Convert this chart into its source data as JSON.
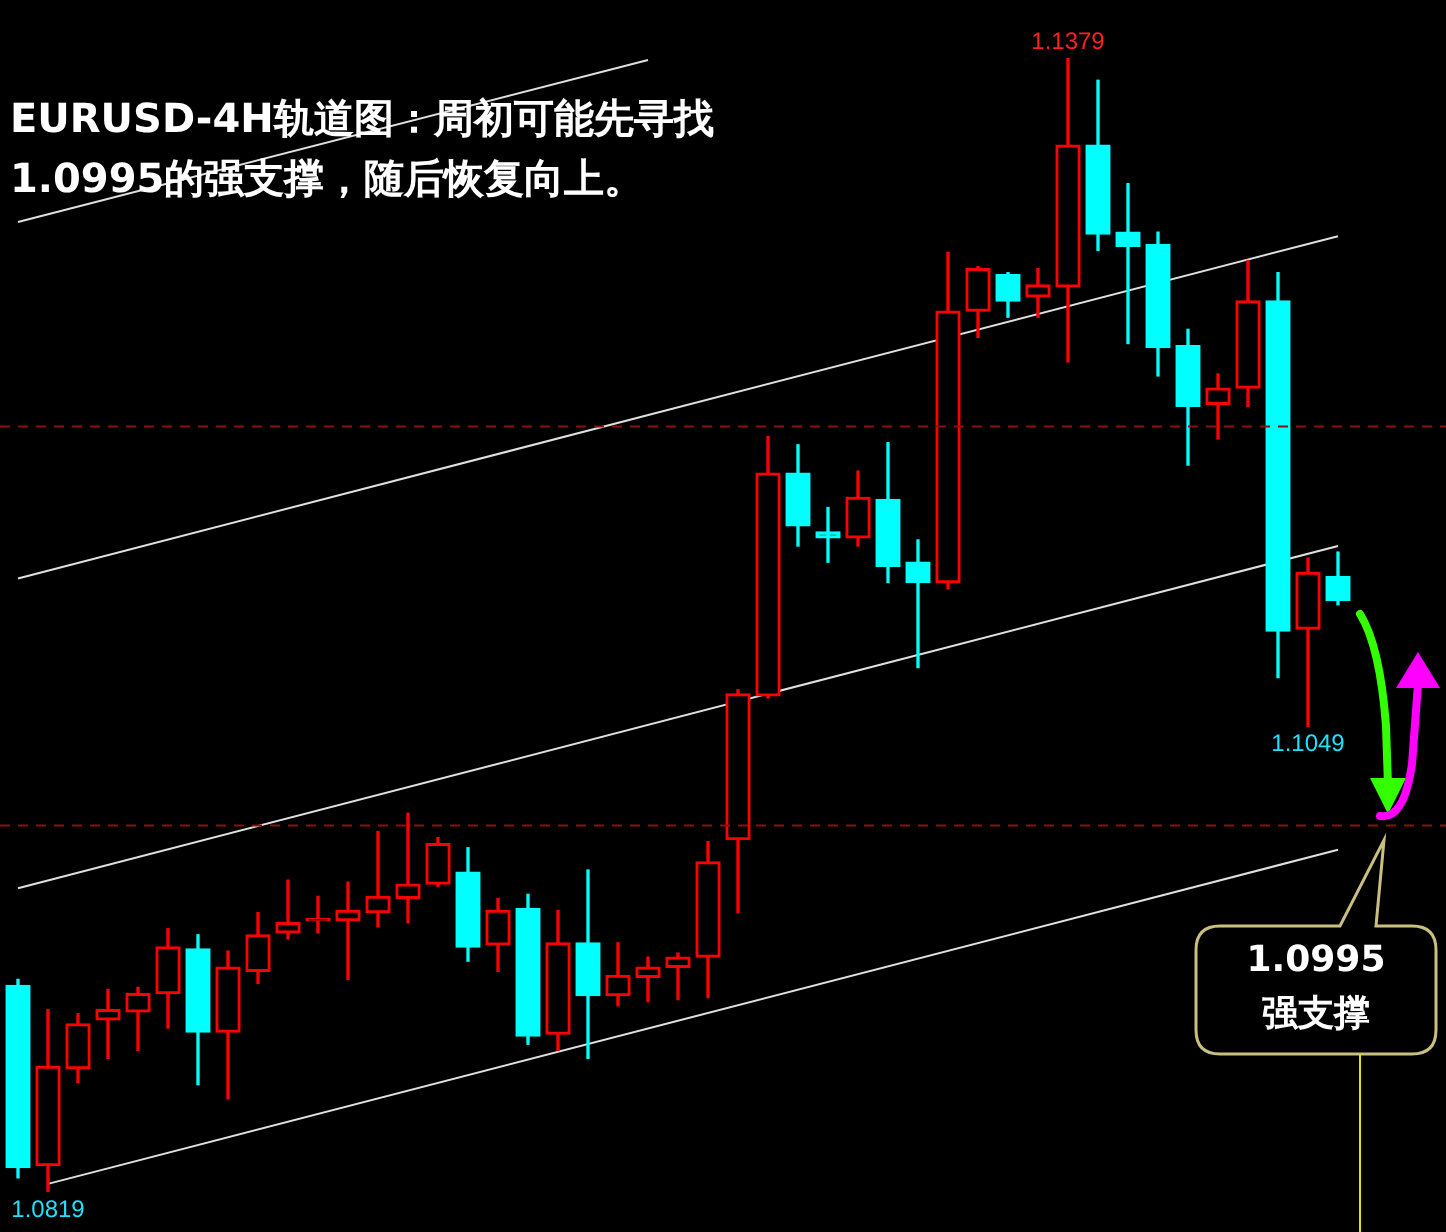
{
  "chart_data": {
    "type": "candlestick",
    "title": "EURUSD-4H轨道图：周初可能先寻找1.0995的强支撑，随后恢复向上。",
    "categories": [
      null,
      null,
      null,
      null,
      null,
      null,
      null,
      null,
      null,
      null,
      null,
      null,
      null,
      null,
      null,
      null,
      null,
      null,
      null,
      null,
      null,
      null,
      null,
      null,
      null,
      null,
      null,
      null,
      null,
      null,
      null,
      null,
      null,
      null,
      null,
      null,
      null,
      null,
      null,
      null,
      null,
      null,
      null,
      null,
      null
    ],
    "ohlc": [
      [
        1.0921,
        1.0924,
        1.0826,
        1.0831
      ],
      [
        1.0832,
        1.0909,
        1.0819,
        1.0881
      ],
      [
        1.088,
        1.0907,
        1.0873,
        1.0902
      ],
      [
        1.0904,
        1.0919,
        1.0885,
        1.0909
      ],
      [
        1.0908,
        1.092,
        1.0889,
        1.0917
      ],
      [
        1.0917,
        1.0949,
        1.09,
        1.094
      ],
      [
        1.0939,
        1.0946,
        1.0872,
        1.0898
      ],
      [
        1.0898,
        1.0938,
        1.0865,
        1.093
      ],
      [
        1.0928,
        1.0957,
        1.0922,
        1.0946
      ],
      [
        1.0947,
        1.0973,
        1.0944,
        1.0952
      ],
      [
        1.0953,
        1.0965,
        1.0947,
        1.0953
      ],
      [
        1.0953,
        1.0972,
        1.0924,
        1.0958
      ],
      [
        1.0957,
        1.0997,
        1.095,
        1.0965
      ],
      [
        1.0964,
        1.1006,
        1.0952,
        1.0971
      ],
      [
        1.0971,
        1.0994,
        1.097,
        1.0991
      ],
      [
        1.0977,
        1.0989,
        1.0933,
        1.094
      ],
      [
        1.0941,
        1.0964,
        1.0928,
        1.0958
      ],
      [
        1.0959,
        1.0966,
        1.0892,
        1.0896
      ],
      [
        1.0897,
        1.0958,
        1.0889,
        1.0942
      ],
      [
        1.0942,
        1.0978,
        1.0885,
        1.0916
      ],
      [
        1.0916,
        1.0942,
        1.0911,
        1.0926
      ],
      [
        1.0925,
        1.0935,
        1.0913,
        1.093
      ],
      [
        1.093,
        1.0937,
        1.0914,
        1.0935
      ],
      [
        1.0935,
        1.0992,
        1.0915,
        1.0982
      ],
      [
        1.0993,
        1.1067,
        1.0957,
        1.1065
      ],
      [
        1.1064,
        1.1192,
        1.1063,
        1.1174
      ],
      [
        1.1174,
        1.1188,
        1.1138,
        1.1148
      ],
      [
        1.1145,
        1.1157,
        1.113,
        1.1142
      ],
      [
        1.1142,
        1.1175,
        1.1138,
        1.1162
      ],
      [
        1.1161,
        1.1189,
        1.112,
        1.1128
      ],
      [
        1.113,
        1.1141,
        1.1078,
        1.112
      ],
      [
        1.112,
        1.1283,
        1.1117,
        1.1254
      ],
      [
        1.1254,
        1.1276,
        1.1241,
        1.1275
      ],
      [
        1.1272,
        1.1273,
        1.1251,
        1.1259
      ],
      [
        1.1261,
        1.1275,
        1.1251,
        1.1267
      ],
      [
        1.1266,
        1.1379,
        1.1229,
        1.1336
      ],
      [
        1.1336,
        1.1368,
        1.1284,
        1.1292
      ],
      [
        1.1293,
        1.1317,
        1.1238,
        1.1286
      ],
      [
        1.1287,
        1.1293,
        1.1222,
        1.1236
      ],
      [
        1.1237,
        1.1245,
        1.1178,
        1.1207
      ],
      [
        1.1208,
        1.1223,
        1.1191,
        1.1216
      ],
      [
        1.1216,
        1.1279,
        1.1207,
        1.1259
      ],
      [
        1.1259,
        1.1273,
        1.1073,
        1.1096
      ],
      [
        1.1097,
        1.1132,
        1.1049,
        1.1125
      ],
      [
        1.1123,
        1.1135,
        1.1109,
        1.1111
      ]
    ],
    "colors": [
      "#00ffff",
      "#ff0000",
      "#ff0000",
      "#ff0000",
      "#ff0000",
      "#ff0000",
      "#00ffff",
      "#ff0000",
      "#ff0000",
      "#ff0000",
      "#ff0000",
      "#ff0000",
      "#ff0000",
      "#ff0000",
      "#ff0000",
      "#00ffff",
      "#ff0000",
      "#00ffff",
      "#ff0000",
      "#00ffff",
      "#ff0000",
      "#ff0000",
      "#ff0000",
      "#ff0000",
      "#ff0000",
      "#ff0000",
      "#00ffff",
      "#00ffff",
      "#ff0000",
      "#00ffff",
      "#00ffff",
      "#ff0000",
      "#ff0000",
      "#00ffff",
      "#ff0000",
      "#ff0000",
      "#00ffff",
      "#00ffff",
      "#00ffff",
      "#00ffff",
      "#ff0000",
      "#ff0000",
      "#00ffff",
      "#ff0000",
      "#00ffff"
    ],
    "series": [
      {
        "type": "line",
        "color": "#e0e0e0",
        "values": [
          1.1298,
          null,
          null,
          null,
          null,
          null,
          null,
          null,
          null,
          null,
          null,
          null,
          null,
          null,
          null,
          null,
          null,
          null,
          null,
          null,
          null,
          1.1378,
          null,
          null,
          null,
          null,
          null,
          null,
          null,
          null,
          null,
          null,
          null,
          null,
          null,
          null,
          null,
          null,
          null,
          null,
          null,
          null,
          null,
          null,
          null
        ]
      },
      {
        "type": "line",
        "color": "#e0e0e0",
        "values": [
          1.1122,
          null,
          null,
          null,
          null,
          null,
          null,
          null,
          null,
          null,
          null,
          null,
          null,
          null,
          null,
          null,
          null,
          null,
          null,
          null,
          null,
          null,
          null,
          null,
          null,
          null,
          null,
          null,
          null,
          null,
          null,
          null,
          null,
          null,
          null,
          null,
          null,
          null,
          null,
          null,
          null,
          null,
          null,
          null,
          1.1291
        ]
      },
      {
        "type": "line",
        "color": "#e0e0e0",
        "values": [
          1.0969,
          null,
          null,
          null,
          null,
          null,
          null,
          null,
          null,
          null,
          null,
          null,
          null,
          null,
          null,
          null,
          null,
          null,
          null,
          null,
          null,
          null,
          null,
          null,
          null,
          null,
          null,
          null,
          null,
          null,
          null,
          null,
          null,
          null,
          null,
          null,
          null,
          null,
          null,
          null,
          null,
          null,
          null,
          null,
          1.1138
        ]
      },
      {
        "type": "line",
        "color": "#e0e0e0",
        "values": [
          null,
          1.0823,
          null,
          null,
          null,
          null,
          null,
          null,
          null,
          null,
          null,
          null,
          null,
          null,
          null,
          null,
          null,
          null,
          null,
          null,
          null,
          null,
          null,
          null,
          null,
          null,
          null,
          null,
          null,
          null,
          null,
          null,
          null,
          null,
          null,
          null,
          null,
          null,
          null,
          null,
          null,
          null,
          null,
          null,
          1.0988
        ]
      }
    ],
    "ref_lines": [
      {
        "axis": "y",
        "value": 1.1197,
        "color": "#8b1010",
        "line_style": "dashed"
      },
      {
        "axis": "y",
        "value": 1.1,
        "color": "#8b1010",
        "line_style": "dashed"
      }
    ],
    "annotations": [
      {
        "text": "1.1379",
        "y": 1.1379
      },
      {
        "text": "1.1049",
        "y": 1.1049
      },
      {
        "text": "1.0819",
        "y": 1.0819
      },
      "1.0995\n强支撑"
    ],
    "legend": false
  }
}
